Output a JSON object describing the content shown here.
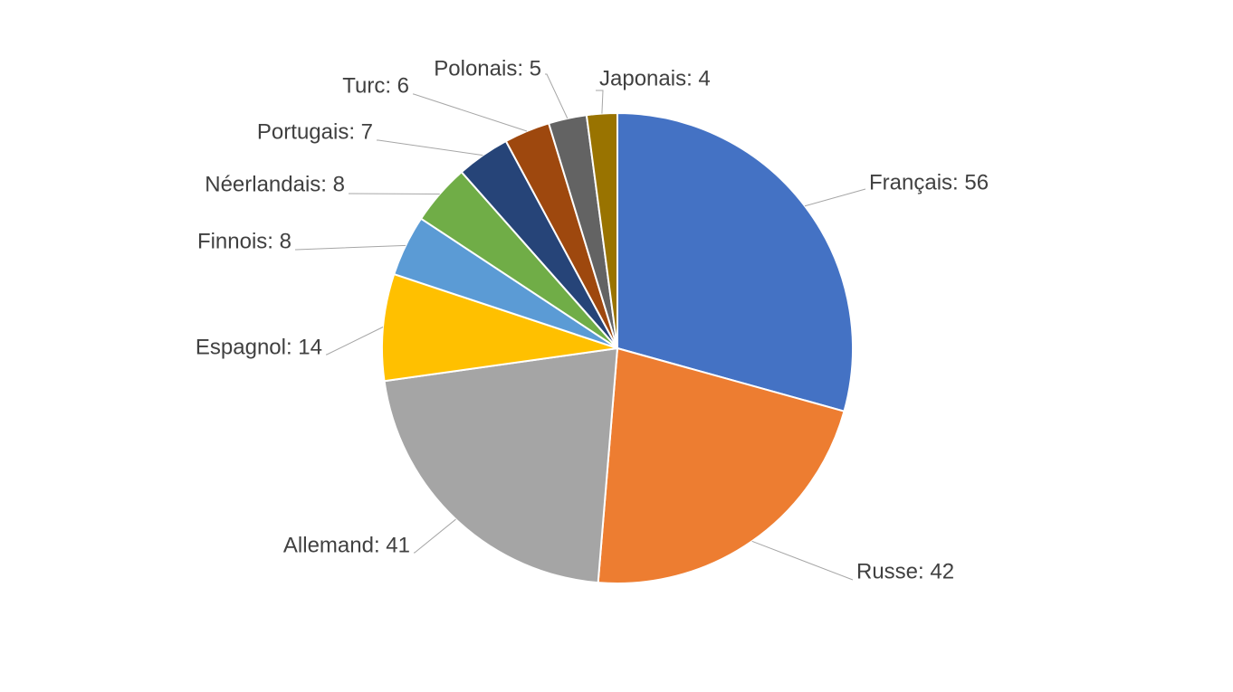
{
  "chart_data": {
    "type": "pie",
    "title": "",
    "categories": [
      "Français",
      "Russe",
      "Allemand",
      "Espagnol",
      "Finnois",
      "Néerlandais",
      "Portugais",
      "Turc",
      "Polonais",
      "Japonais"
    ],
    "values": [
      56,
      42,
      41,
      14,
      8,
      8,
      7,
      6,
      5,
      4
    ],
    "colors": [
      "#4472C4",
      "#ED7D31",
      "#A5A5A5",
      "#FFC000",
      "#5B9BD5",
      "#70AD47",
      "#264478",
      "#9E480E",
      "#636363",
      "#997300"
    ],
    "legend": "none",
    "labels": [
      "Français: 56",
      "Russe: 42",
      "Allemand: 41",
      "Espagnol: 14",
      "Finnois: 8",
      "Néerlandais: 8",
      "Portugais: 7",
      "Turc: 6",
      "Polonais: 5",
      "Japonais: 4"
    ]
  }
}
